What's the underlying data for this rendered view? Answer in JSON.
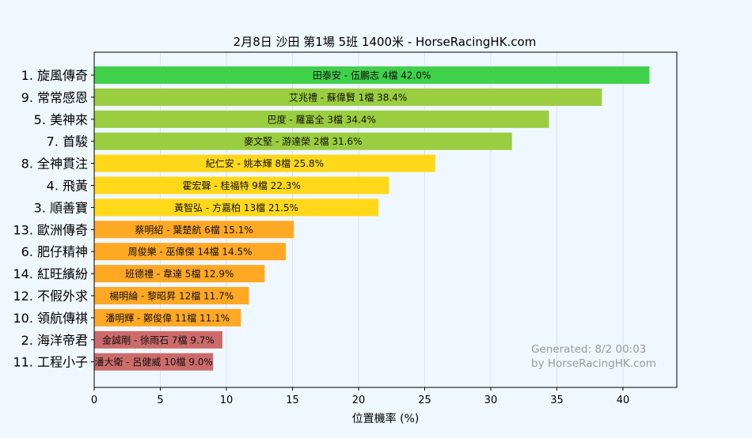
{
  "chart_data": {
    "type": "bar",
    "orientation": "horizontal",
    "title": "2月8日  沙田  第1場  5班  1400米 - HorseRacingHK.com",
    "xlabel": "位置機率 (%)",
    "ylabel": "",
    "xlim": [
      0,
      44
    ],
    "xticks": [
      0,
      5,
      10,
      15,
      20,
      25,
      30,
      35,
      40
    ],
    "grid": true,
    "categories": [
      "1. 旋風傳奇",
      "9. 常常感恩",
      "5. 美神來",
      "7. 首駿",
      "8. 全神貫注",
      "4. 飛黃",
      "3. 順善寶",
      "13. 歐洲傳奇",
      "6. 肥仔精神",
      "14. 紅旺繽紛",
      "12. 不假外求",
      "10. 領航傳祺",
      "2. 海洋帝君",
      "11. 工程小子"
    ],
    "values": [
      42.0,
      38.4,
      34.4,
      31.6,
      25.8,
      22.3,
      21.5,
      15.1,
      14.5,
      12.9,
      11.7,
      11.1,
      9.7,
      9.0
    ],
    "data_labels": [
      "田泰安 - 伍鵬志 4檔  42.0%",
      "艾兆禮 - 蘇偉賢 1檔  38.4%",
      "巴度 - 羅富全 3檔  34.4%",
      "麥文堅 - 游達榮 2檔  31.6%",
      "紀仁安 - 姚本輝 8檔  25.8%",
      "霍宏聲 - 桂福特 9檔  22.3%",
      "黃智弘 - 方嘉柏 13檔  21.5%",
      "蔡明紹 - 葉楚航 6檔  15.1%",
      "周俊樂 - 巫偉傑 14檔  14.5%",
      "班德禮 - 韋達 5檔  12.9%",
      "楊明綸 - 黎昭昇 12檔  11.7%",
      "潘明輝 - 鄭俊偉 11檔  11.1%",
      "金誠剛 - 徐雨石 7檔  9.7%",
      "潘大衛 - 呂健威 10檔  9.0%"
    ],
    "bar_colors": [
      "#3fd14a",
      "#9acd3f",
      "#9acd3f",
      "#9acd3f",
      "#ffd81a",
      "#ffd81a",
      "#ffd81a",
      "#ffa824",
      "#ffa824",
      "#ffa824",
      "#ffa824",
      "#ffa824",
      "#cd6b6b",
      "#cd6b6b"
    ],
    "annotation": [
      "Generated: 8/2 00:03",
      "by HorseRacingHK.com"
    ],
    "colors": {
      "background": "#f0f8ff",
      "plot_background": "#f0f8ff",
      "grid": "#d9e4ee",
      "text": "#000000",
      "annotation": "#999999"
    }
  }
}
